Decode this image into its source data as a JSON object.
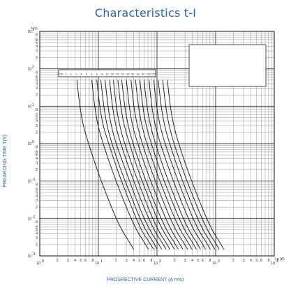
{
  "chart_data": {
    "type": "line",
    "title": "Characteristics  t-I",
    "xlabel": "PROSPECTIVE CURRENT (A rms)",
    "ylabel": "PREARCING TIME T(S)",
    "x_unit_label": "I p (A)",
    "y_unit_label": "t (s)",
    "x_scale": "log",
    "y_scale": "log",
    "xlim": [
      1,
      10000
    ],
    "ylim": [
      0.001,
      1000
    ],
    "grid": true,
    "x_major_ticks": [
      {
        "value": 1,
        "label": "10",
        "exp": "0"
      },
      {
        "value": 10,
        "label": "10",
        "exp": "1"
      },
      {
        "value": 100,
        "label": "10",
        "exp": "2"
      },
      {
        "value": 1000,
        "label": "10",
        "exp": "3"
      },
      {
        "value": 10000,
        "label": "10",
        "exp": "4"
      }
    ],
    "x_minor_labels": [
      "2",
      "3",
      "4",
      "5",
      "6",
      "8"
    ],
    "y_major_ticks": [
      {
        "value": 1000,
        "label": "10",
        "exp": "3"
      },
      {
        "value": 100,
        "label": "10",
        "exp": "2"
      },
      {
        "value": 10,
        "label": "10",
        "exp": "1"
      },
      {
        "value": 1,
        "label": "10",
        "exp": "0"
      },
      {
        "value": 0.1,
        "label": "10",
        "exp": "-1"
      },
      {
        "value": 0.01,
        "label": "10",
        "exp": "-2"
      },
      {
        "value": 0.001,
        "label": "10",
        "exp": "-3"
      }
    ],
    "rating_labels": [
      "0.50",
      "1",
      "2",
      "3",
      "4",
      "5",
      "6",
      "8",
      "10",
      "16",
      "20",
      "25",
      "32",
      "40",
      "50",
      "63",
      "80",
      "100",
      "125"
    ],
    "series": [
      {
        "label": "0.50",
        "points": [
          [
            4.3,
            50
          ],
          [
            4.8,
            10
          ],
          [
            5.5,
            3
          ],
          [
            6.8,
            1
          ],
          [
            9.5,
            0.2
          ],
          [
            14,
            0.04
          ],
          [
            20,
            0.01
          ],
          [
            27,
            0.004
          ],
          [
            33,
            0.0025
          ],
          [
            40,
            0.0015
          ]
        ]
      },
      {
        "label": "1",
        "points": [
          [
            7.7,
            50
          ],
          [
            8.6,
            10
          ],
          [
            9.8,
            3
          ],
          [
            12,
            1
          ],
          [
            17,
            0.2
          ],
          [
            25,
            0.04
          ],
          [
            36,
            0.01
          ],
          [
            48,
            0.004
          ],
          [
            59,
            0.0025
          ],
          [
            71,
            0.0015
          ]
        ]
      },
      {
        "label": "2",
        "points": [
          [
            9.4,
            50
          ],
          [
            10.5,
            10
          ],
          [
            12,
            3
          ],
          [
            15,
            1
          ],
          [
            21,
            0.2
          ],
          [
            31,
            0.04
          ],
          [
            44,
            0.01
          ],
          [
            58,
            0.004
          ],
          [
            72,
            0.0025
          ],
          [
            87,
            0.0015
          ]
        ]
      },
      {
        "label": "3",
        "points": [
          [
            11,
            50
          ],
          [
            12.3,
            10
          ],
          [
            14,
            3
          ],
          [
            17,
            1
          ],
          [
            24,
            0.2
          ],
          [
            36,
            0.04
          ],
          [
            51,
            0.01
          ],
          [
            69,
            0.004
          ],
          [
            84,
            0.0025
          ],
          [
            101,
            0.0015
          ]
        ]
      },
      {
        "label": "4",
        "points": [
          [
            13,
            50
          ],
          [
            14.5,
            10
          ],
          [
            16.5,
            3
          ],
          [
            20,
            1
          ],
          [
            29,
            0.2
          ],
          [
            42,
            0.04
          ],
          [
            60,
            0.01
          ],
          [
            81,
            0.004
          ],
          [
            99,
            0.0025
          ],
          [
            120,
            0.0015
          ]
        ]
      },
      {
        "label": "5",
        "points": [
          [
            15.5,
            50
          ],
          [
            17.3,
            10
          ],
          [
            19.7,
            3
          ],
          [
            24,
            1
          ],
          [
            34,
            0.2
          ],
          [
            50,
            0.04
          ],
          [
            72,
            0.01
          ],
          [
            96,
            0.004
          ],
          [
            118,
            0.0025
          ],
          [
            143,
            0.0015
          ]
        ]
      },
      {
        "label": "6",
        "points": [
          [
            18,
            50
          ],
          [
            20.1,
            10
          ],
          [
            23,
            3
          ],
          [
            28,
            1
          ],
          [
            40,
            0.2
          ],
          [
            59,
            0.04
          ],
          [
            84,
            0.01
          ],
          [
            112,
            0.004
          ],
          [
            137,
            0.0025
          ],
          [
            166,
            0.0015
          ]
        ]
      },
      {
        "label": "8",
        "points": [
          [
            21.5,
            50
          ],
          [
            24,
            10
          ],
          [
            27.4,
            3
          ],
          [
            34,
            1
          ],
          [
            47,
            0.2
          ],
          [
            70,
            0.04
          ],
          [
            100,
            0.01
          ],
          [
            134,
            0.004
          ],
          [
            164,
            0.0025
          ],
          [
            198,
            0.0015
          ]
        ]
      },
      {
        "label": "10",
        "points": [
          [
            25,
            50
          ],
          [
            28,
            10
          ],
          [
            32,
            3
          ],
          [
            39,
            1
          ],
          [
            55,
            0.2
          ],
          [
            81,
            0.04
          ],
          [
            117,
            0.01
          ],
          [
            156,
            0.004
          ],
          [
            191,
            0.0025
          ],
          [
            230,
            0.0015
          ]
        ]
      },
      {
        "label": "16",
        "points": [
          [
            30,
            50
          ],
          [
            33.5,
            10
          ],
          [
            38,
            3
          ],
          [
            47,
            1
          ],
          [
            66,
            0.2
          ],
          [
            98,
            0.04
          ],
          [
            140,
            0.01
          ],
          [
            187,
            0.004
          ],
          [
            229,
            0.0025
          ],
          [
            276,
            0.0015
          ]
        ]
      },
      {
        "label": "20",
        "points": [
          [
            36,
            50
          ],
          [
            40,
            10
          ],
          [
            46,
            3
          ],
          [
            56,
            1
          ],
          [
            79,
            0.2
          ],
          [
            117,
            0.04
          ],
          [
            168,
            0.01
          ],
          [
            224,
            0.004
          ],
          [
            275,
            0.0025
          ],
          [
            331,
            0.0015
          ]
        ]
      },
      {
        "label": "25",
        "points": [
          [
            43,
            50
          ],
          [
            48,
            10
          ],
          [
            55,
            3
          ],
          [
            67,
            1
          ],
          [
            95,
            0.2
          ],
          [
            140,
            0.04
          ],
          [
            200,
            0.01
          ],
          [
            268,
            0.004
          ],
          [
            328,
            0.0025
          ],
          [
            395,
            0.0015
          ]
        ]
      },
      {
        "label": "32",
        "points": [
          [
            51,
            50
          ],
          [
            57,
            10
          ],
          [
            65,
            3
          ],
          [
            80,
            1
          ],
          [
            112,
            0.2
          ],
          [
            166,
            0.04
          ],
          [
            238,
            0.01
          ],
          [
            318,
            0.004
          ],
          [
            390,
            0.0025
          ],
          [
            469,
            0.0015
          ]
        ]
      },
      {
        "label": "40",
        "points": [
          [
            60,
            50
          ],
          [
            67,
            10
          ],
          [
            77,
            3
          ],
          [
            94,
            1
          ],
          [
            132,
            0.2
          ],
          [
            196,
            0.04
          ],
          [
            280,
            0.01
          ],
          [
            374,
            0.004
          ],
          [
            459,
            0.0025
          ],
          [
            552,
            0.0015
          ]
        ]
      },
      {
        "label": "50",
        "points": [
          [
            73,
            50
          ],
          [
            81,
            10
          ],
          [
            93,
            3
          ],
          [
            114,
            1
          ],
          [
            161,
            0.2
          ],
          [
            238,
            0.04
          ],
          [
            341,
            0.01
          ],
          [
            455,
            0.004
          ],
          [
            558,
            0.0025
          ],
          [
            672,
            0.0015
          ]
        ]
      },
      {
        "label": "63",
        "points": [
          [
            88,
            50
          ],
          [
            98,
            10
          ],
          [
            112,
            3
          ],
          [
            137,
            1
          ],
          [
            194,
            0.2
          ],
          [
            287,
            0.04
          ],
          [
            410,
            0.01
          ],
          [
            548,
            0.004
          ],
          [
            673,
            0.0025
          ],
          [
            810,
            0.0015
          ]
        ]
      },
      {
        "label": "80",
        "points": [
          [
            105,
            50
          ],
          [
            117,
            10
          ],
          [
            134,
            3
          ],
          [
            164,
            1
          ],
          [
            231,
            0.2
          ],
          [
            342,
            0.04
          ],
          [
            490,
            0.01
          ],
          [
            654,
            0.004
          ],
          [
            802,
            0.0025
          ],
          [
            966,
            0.0015
          ]
        ]
      },
      {
        "label": "100",
        "points": [
          [
            125,
            50
          ],
          [
            140,
            10
          ],
          [
            160,
            3
          ],
          [
            195,
            1
          ],
          [
            275,
            0.2
          ],
          [
            407,
            0.04
          ],
          [
            583,
            0.01
          ],
          [
            778,
            0.004
          ],
          [
            955,
            0.0025
          ],
          [
            1150,
            0.0015
          ]
        ]
      },
      {
        "label": "125",
        "points": [
          [
            150,
            50
          ],
          [
            168,
            10
          ],
          [
            192,
            3
          ],
          [
            234,
            1
          ],
          [
            330,
            0.2
          ],
          [
            489,
            0.04
          ],
          [
            700,
            0.01
          ],
          [
            934,
            0.004
          ],
          [
            1146,
            0.0025
          ],
          [
            1380,
            0.0015
          ]
        ]
      }
    ]
  }
}
